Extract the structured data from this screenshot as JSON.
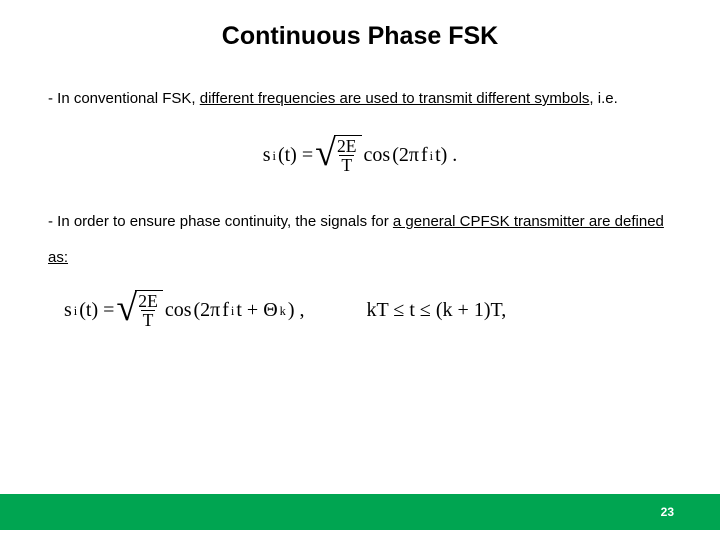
{
  "title": {
    "text": "Continuous Phase FSK",
    "fontsize": 25
  },
  "body": {
    "fontsize": 15,
    "para1_prefix": "- In conventional FSK, ",
    "para1_u": "different frequencies are used to transmit different symbols",
    "para1_suffix": ", i.e.",
    "para2_prefix": "- In order to ensure phase continuity, the signals for ",
    "para2_u": "a general CPFSK transmitter are defined as:",
    "para2_suffix": ""
  },
  "formula1": {
    "fontsize": 20,
    "lhs_s": "s",
    "lhs_i": "i",
    "lhs_t": "(t) = ",
    "root_num": "2E",
    "root_den": "T",
    "cos": " cos ",
    "arg_open": "(2π",
    "arg_f": "f",
    "arg_i": "i",
    "arg_close": "t) ."
  },
  "formula2": {
    "fontsize": 20,
    "lhs_s": "s",
    "lhs_i": "i",
    "lhs_t": "(t) = ",
    "root_num": "2E",
    "root_den": "T",
    "cos": " cos ",
    "arg_open": "(2π",
    "arg_f": "f",
    "arg_i2": "i",
    "arg_mid": "t + Θ",
    "arg_k": "k",
    "arg_close": ") ,",
    "range_a": "kT ≤ t ≤ (k + 1)T,"
  },
  "footer": {
    "bar_color": "#00a551",
    "page": "23",
    "page_fontsize": 12
  }
}
